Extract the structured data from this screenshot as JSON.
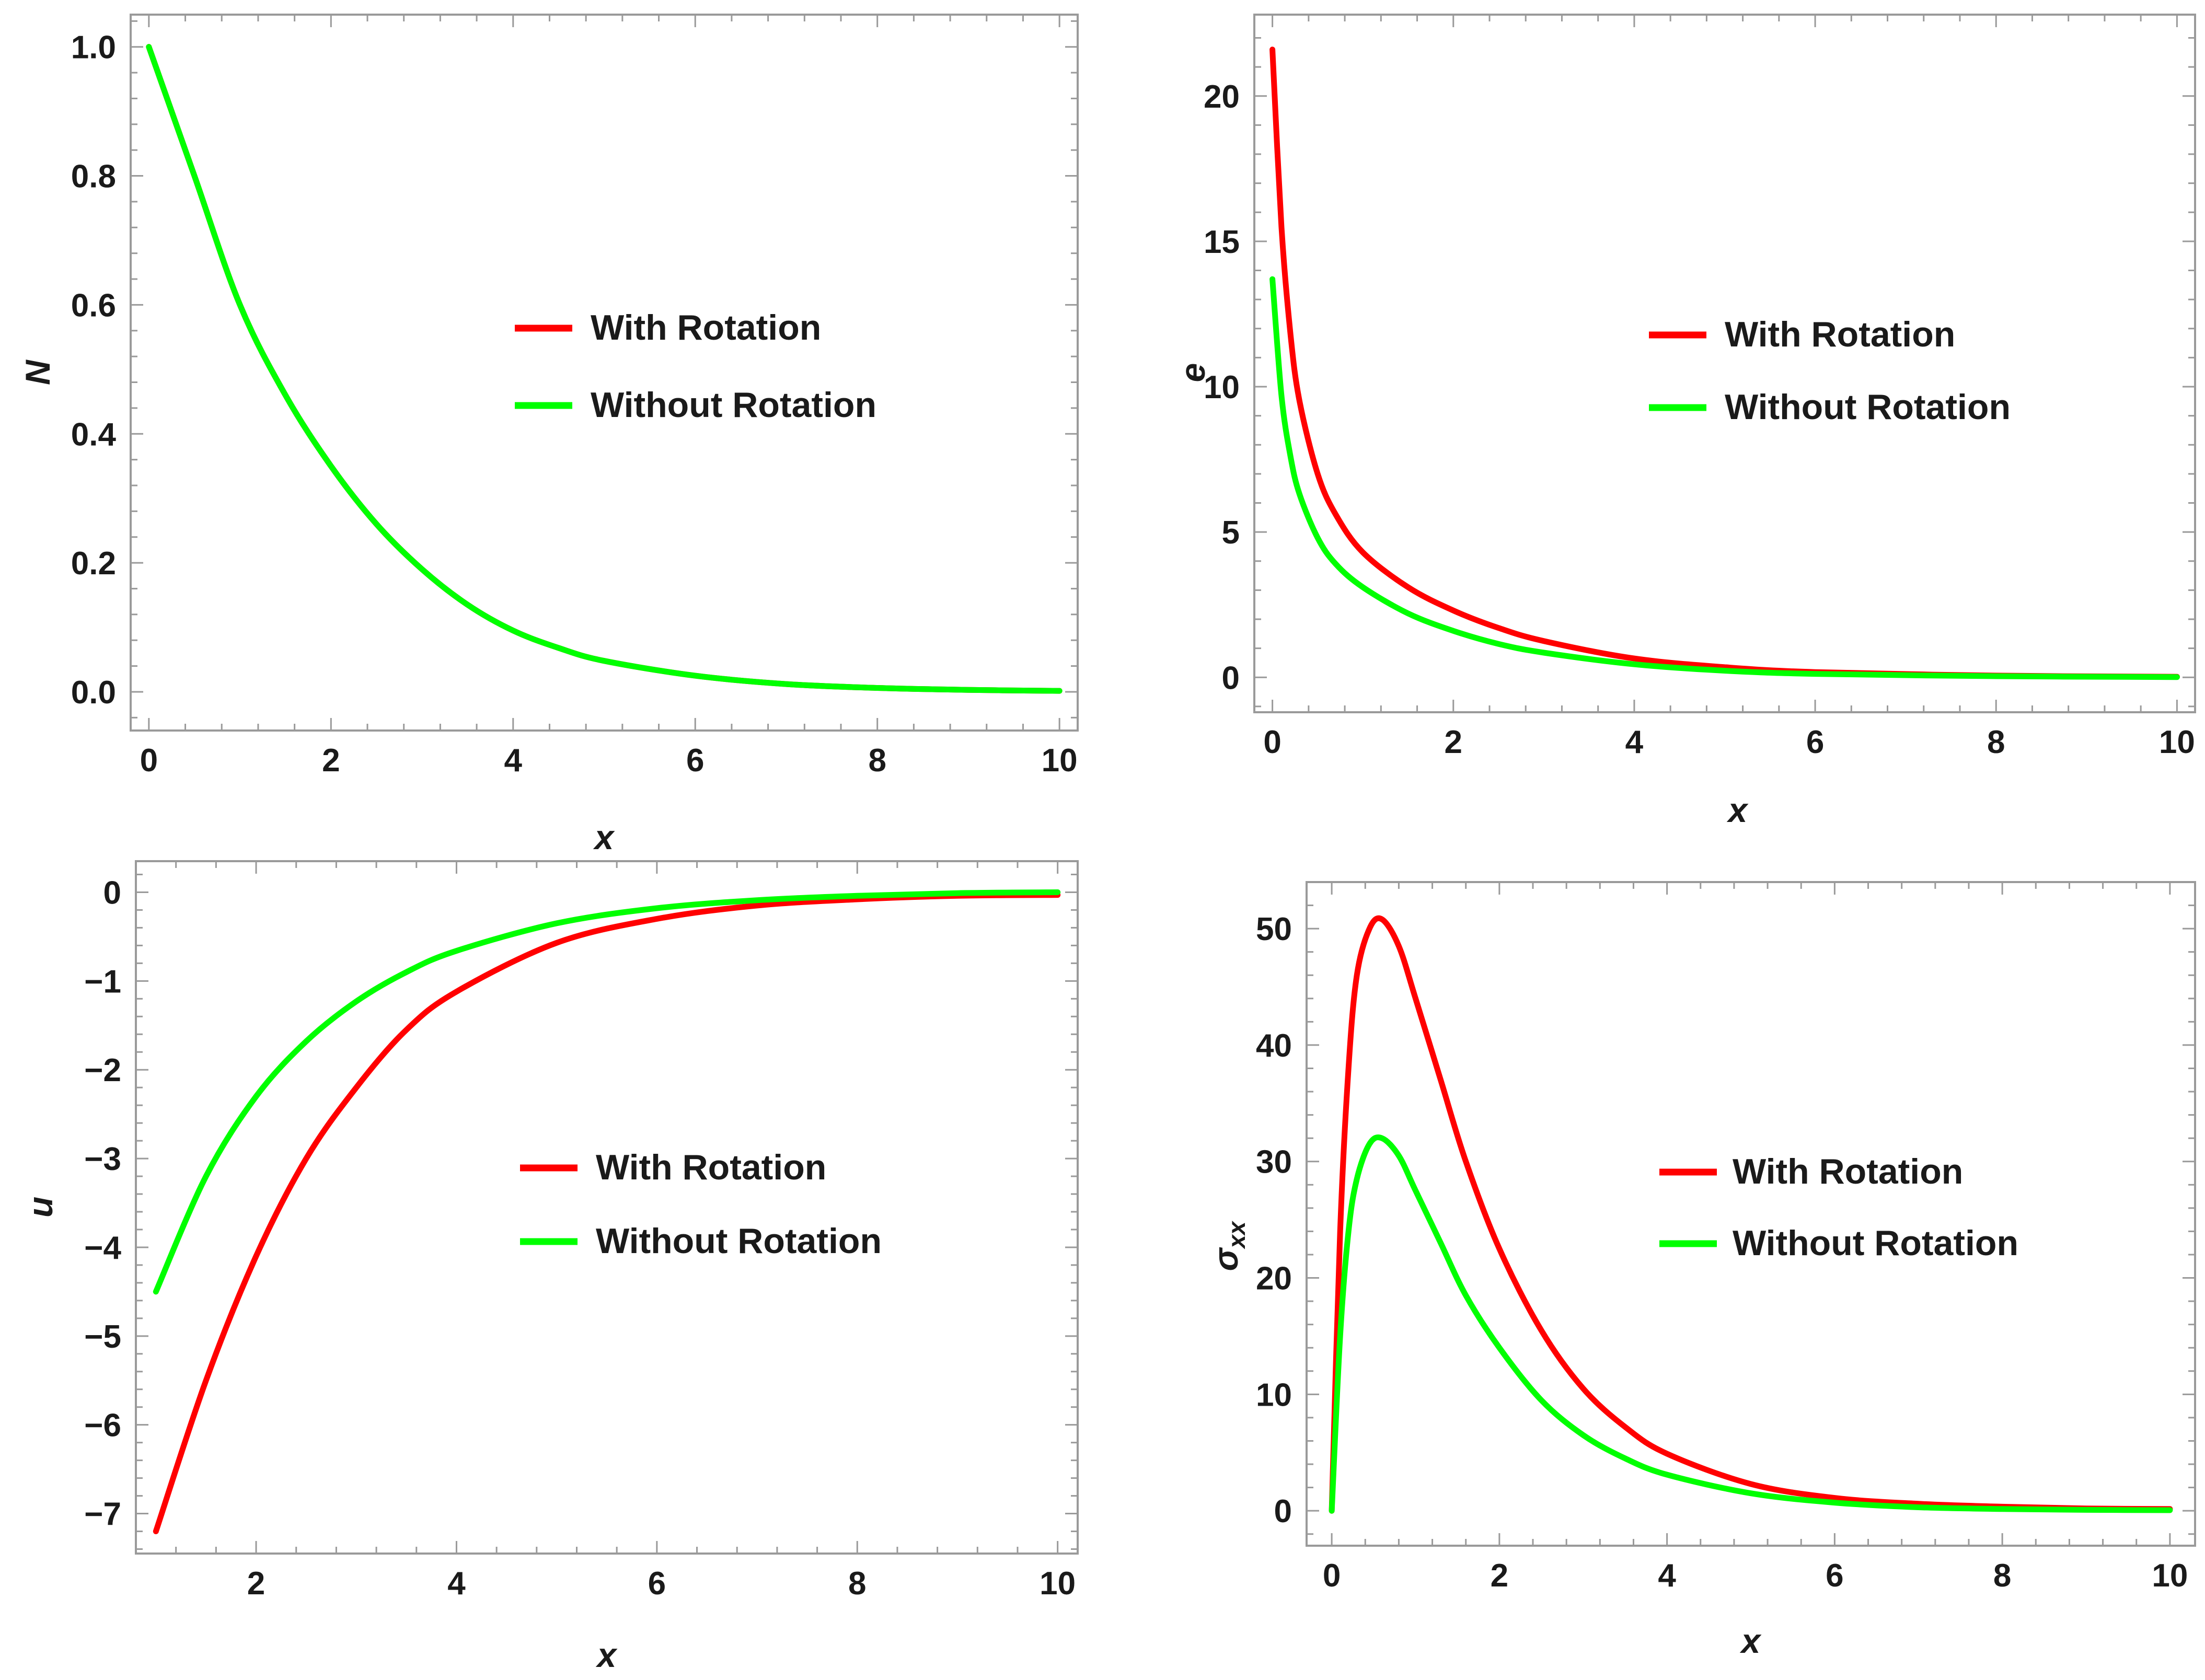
{
  "colors": {
    "with": "#ff0000",
    "without": "#00ff00",
    "frame": "#9a9a9a",
    "text": "#1a1a1a"
  },
  "chart_data": [
    {
      "id": "N",
      "type": "line",
      "xlabel": "x",
      "ylabel": "N",
      "xlim": [
        -0.2,
        10.2
      ],
      "ylim": [
        -0.06,
        1.05
      ],
      "xticks": [
        0,
        2,
        4,
        6,
        8,
        10
      ],
      "xtick_labels": [
        "0",
        "2",
        "4",
        "6",
        "8",
        "10"
      ],
      "yticks": [
        0,
        0.2,
        0.4,
        0.6,
        0.8,
        1.0
      ],
      "ytick_labels": [
        "0.0",
        "0.2",
        "0.4",
        "0.6",
        "0.8",
        "1.0"
      ],
      "legend_position": "center",
      "series": [
        {
          "name": "With Rotation",
          "color": "#ff0000",
          "x": [
            0,
            0.5,
            1,
            1.5,
            2,
            2.5,
            3,
            3.5,
            4,
            4.5,
            5,
            6,
            7,
            8,
            9,
            10
          ],
          "y": [
            1.0,
            0.8,
            0.6,
            0.46,
            0.35,
            0.26,
            0.19,
            0.135,
            0.095,
            0.068,
            0.048,
            0.025,
            0.012,
            0.006,
            0.003,
            0.0015
          ]
        },
        {
          "name": "Without Rotation",
          "color": "#00ff00",
          "x": [
            0,
            0.5,
            1,
            1.5,
            2,
            2.5,
            3,
            3.5,
            4,
            4.5,
            5,
            6,
            7,
            8,
            9,
            10
          ],
          "y": [
            1.0,
            0.8,
            0.6,
            0.46,
            0.35,
            0.26,
            0.19,
            0.135,
            0.095,
            0.068,
            0.048,
            0.025,
            0.012,
            0.006,
            0.003,
            0.0015
          ]
        }
      ]
    },
    {
      "id": "e",
      "type": "line",
      "xlabel": "x",
      "ylabel": "e",
      "xlim": [
        -0.2,
        10.2
      ],
      "ylim": [
        -1.2,
        22.8
      ],
      "xticks": [
        0,
        2,
        4,
        6,
        8,
        10
      ],
      "xtick_labels": [
        "0",
        "2",
        "4",
        "6",
        "8",
        "10"
      ],
      "yticks": [
        0,
        5,
        10,
        15,
        20
      ],
      "ytick_labels": [
        "0",
        "5",
        "10",
        "15",
        "20"
      ],
      "legend_position": "center-right",
      "series": [
        {
          "name": "With Rotation",
          "color": "#ff0000",
          "x": [
            0,
            0.1,
            0.2,
            0.3,
            0.5,
            0.7,
            1,
            1.5,
            2,
            2.5,
            3,
            4,
            5,
            6,
            8,
            10
          ],
          "y": [
            21.6,
            15.5,
            11.8,
            9.5,
            7.0,
            5.6,
            4.3,
            3.1,
            2.3,
            1.7,
            1.25,
            0.65,
            0.35,
            0.18,
            0.06,
            0.02
          ]
        },
        {
          "name": "Without Rotation",
          "color": "#00ff00",
          "x": [
            0,
            0.1,
            0.2,
            0.3,
            0.5,
            0.7,
            1,
            1.5,
            2,
            2.5,
            3,
            4,
            5,
            6,
            8,
            10
          ],
          "y": [
            13.7,
            9.7,
            7.6,
            6.3,
            4.8,
            3.9,
            3.1,
            2.2,
            1.6,
            1.15,
            0.85,
            0.45,
            0.23,
            0.12,
            0.04,
            0.01
          ]
        }
      ]
    },
    {
      "id": "u",
      "type": "line",
      "xlabel": "x",
      "ylabel": "u",
      "xlim": [
        0.8,
        10.2
      ],
      "ylim": [
        -7.45,
        0.35
      ],
      "xticks": [
        2,
        4,
        6,
        8,
        10
      ],
      "xtick_labels": [
        "2",
        "4",
        "6",
        "8",
        "10"
      ],
      "yticks": [
        0,
        -1,
        -2,
        -3,
        -4,
        -5,
        -6,
        -7
      ],
      "ytick_labels": [
        "0",
        "−1",
        "−2",
        "−3",
        "−4",
        "−5",
        "−6",
        "−7"
      ],
      "legend_position": "center",
      "series": [
        {
          "name": "With Rotation",
          "color": "#ff0000",
          "x": [
            1,
            1.5,
            2,
            2.5,
            3,
            3.5,
            4,
            5,
            6,
            7,
            8,
            9,
            10
          ],
          "y": [
            -7.2,
            -5.5,
            -4.1,
            -3.0,
            -2.2,
            -1.55,
            -1.12,
            -0.57,
            -0.3,
            -0.15,
            -0.08,
            -0.04,
            -0.03
          ]
        },
        {
          "name": "Without Rotation",
          "color": "#00ff00",
          "x": [
            1,
            1.5,
            2,
            2.5,
            3,
            3.5,
            4,
            5,
            6,
            7,
            8,
            9,
            10
          ],
          "y": [
            -4.5,
            -3.2,
            -2.3,
            -1.68,
            -1.23,
            -0.9,
            -0.66,
            -0.35,
            -0.18,
            -0.09,
            -0.04,
            -0.01,
            0.0
          ]
        }
      ]
    },
    {
      "id": "sigma",
      "type": "line",
      "xlabel": "x",
      "ylabel": "σ",
      "ylabel_sub": "xx",
      "xlim": [
        -0.3,
        10.3
      ],
      "ylim": [
        -3,
        54
      ],
      "xticks": [
        0,
        2,
        4,
        6,
        8,
        10
      ],
      "xtick_labels": [
        "0",
        "2",
        "4",
        "6",
        "8",
        "10"
      ],
      "yticks": [
        0,
        10,
        20,
        30,
        40,
        50
      ],
      "ytick_labels": [
        "0",
        "10",
        "20",
        "30",
        "40",
        "50"
      ],
      "legend_position": "center-right",
      "series": [
        {
          "name": "With Rotation",
          "color": "#ff0000",
          "x": [
            0,
            0.1,
            0.2,
            0.3,
            0.45,
            0.6,
            0.8,
            1,
            1.3,
            1.6,
            2,
            2.5,
            3,
            3.5,
            4,
            5,
            6,
            7,
            8,
            9,
            10
          ],
          "y": [
            0,
            24,
            38,
            46,
            50,
            50.8,
            48.5,
            44,
            37,
            30,
            22.5,
            15.5,
            10.5,
            7.2,
            4.9,
            2.3,
            1.1,
            0.6,
            0.35,
            0.2,
            0.15
          ]
        },
        {
          "name": "Without Rotation",
          "color": "#00ff00",
          "x": [
            0,
            0.1,
            0.2,
            0.3,
            0.45,
            0.6,
            0.8,
            1,
            1.3,
            1.6,
            2,
            2.5,
            3,
            3.5,
            4,
            5,
            6,
            7,
            8,
            9,
            10
          ],
          "y": [
            0,
            15,
            24,
            28.5,
            31.5,
            32,
            30.5,
            27.5,
            23,
            18.5,
            14,
            9.5,
            6.5,
            4.5,
            3.1,
            1.5,
            0.7,
            0.3,
            0.15,
            0.08,
            0.05
          ]
        }
      ]
    }
  ]
}
